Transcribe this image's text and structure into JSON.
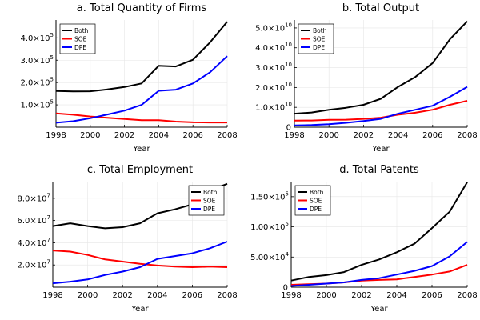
{
  "colors": {
    "Both": "#000000",
    "SOE": "#ff0000",
    "DPE": "#0000ff"
  },
  "chart_data": [
    {
      "type": "line",
      "title": "a. Total Quantity of Firms",
      "xlabel": "Year",
      "ylabel": "",
      "x": [
        1998,
        1999,
        2000,
        2001,
        2002,
        2003,
        2004,
        2005,
        2006,
        2007,
        2008
      ],
      "xticks": [
        "1998",
        "2000",
        "2002",
        "2004",
        "2006",
        "2008"
      ],
      "yticks": [
        {
          "value": 100000,
          "mant": "1.0×10",
          "exp": "5"
        },
        {
          "value": 200000,
          "mant": "2.0×10",
          "exp": "5"
        },
        {
          "value": 300000,
          "mant": "3.0×10",
          "exp": "5"
        },
        {
          "value": 400000,
          "mant": "4.0×10",
          "exp": "5"
        }
      ],
      "ylim": [
        0,
        480000
      ],
      "grid": true,
      "legend_position": "top-left",
      "series": [
        {
          "name": "Both",
          "values": [
            162000,
            160000,
            161000,
            169000,
            180000,
            196000,
            275000,
            272000,
            302000,
            380000,
            472000
          ]
        },
        {
          "name": "SOE",
          "values": [
            62000,
            56000,
            48000,
            42000,
            37000,
            31000,
            31000,
            25000,
            22000,
            21000,
            21000
          ]
        },
        {
          "name": "DPE",
          "values": [
            20000,
            27000,
            40000,
            57000,
            74000,
            100000,
            163000,
            168000,
            196000,
            246000,
            318000
          ]
        }
      ]
    },
    {
      "type": "line",
      "title": "b. Total Output",
      "xlabel": "Year",
      "ylabel": "",
      "x": [
        1998,
        1999,
        2000,
        2001,
        2002,
        2003,
        2004,
        2005,
        2006,
        2007,
        2008
      ],
      "xticks": [
        "1998",
        "2000",
        "2002",
        "2004",
        "2006",
        "2008"
      ],
      "yticks": [
        {
          "value": 0,
          "mant": "0",
          "exp": ""
        },
        {
          "value": 10000000000,
          "mant": "1.0×10",
          "exp": "10"
        },
        {
          "value": 20000000000,
          "mant": "2.0×10",
          "exp": "10"
        },
        {
          "value": 30000000000,
          "mant": "3.0×10",
          "exp": "10"
        },
        {
          "value": 40000000000,
          "mant": "4.0×10",
          "exp": "10"
        },
        {
          "value": 50000000000,
          "mant": "5.0×10",
          "exp": "10"
        }
      ],
      "ylim": [
        0,
        54000000000
      ],
      "grid": true,
      "legend_position": "top-left",
      "series": [
        {
          "name": "Both",
          "values": [
            6800000000,
            7400000000,
            8800000000,
            9800000000,
            11300000000,
            14300000000,
            20300000000,
            25300000000,
            32300000000,
            44300000000,
            53300000000
          ]
        },
        {
          "name": "SOE",
          "values": [
            3300000000,
            3400000000,
            3700000000,
            3800000000,
            4200000000,
            4800000000,
            6300000000,
            7300000000,
            8800000000,
            11300000000,
            13300000000
          ]
        },
        {
          "name": "DPE",
          "values": [
            900000000,
            1100000000,
            1500000000,
            2200000000,
            3100000000,
            4200000000,
            6800000000,
            8800000000,
            10800000000,
            15300000000,
            20300000000
          ]
        }
      ]
    },
    {
      "type": "line",
      "title": "c. Total Employment",
      "xlabel": "Year",
      "ylabel": "",
      "x": [
        1998,
        1999,
        2000,
        2001,
        2002,
        2003,
        2004,
        2005,
        2006,
        2007,
        2008
      ],
      "xticks": [
        "1998",
        "2000",
        "2002",
        "2004",
        "2006",
        "2008"
      ],
      "yticks": [
        {
          "value": 20000000,
          "mant": "2.0×10",
          "exp": "7"
        },
        {
          "value": 40000000,
          "mant": "4.0×10",
          "exp": "7"
        },
        {
          "value": 60000000,
          "mant": "6.0×10",
          "exp": "7"
        },
        {
          "value": 80000000,
          "mant": "8.0×10",
          "exp": "7"
        }
      ],
      "ylim": [
        0,
        95000000
      ],
      "grid": true,
      "legend_position": "top-right",
      "series": [
        {
          "name": "Both",
          "values": [
            55000000,
            57500000,
            55000000,
            53000000,
            54000000,
            57500000,
            66500000,
            70000000,
            74500000,
            87000000,
            93000000
          ]
        },
        {
          "name": "SOE",
          "values": [
            33000000,
            32000000,
            29000000,
            25000000,
            23000000,
            21000000,
            19500000,
            18500000,
            18000000,
            18500000,
            18000000
          ]
        },
        {
          "name": "DPE",
          "values": [
            3500000,
            5000000,
            7000000,
            11000000,
            14000000,
            18000000,
            25500000,
            28000000,
            30500000,
            35000000,
            41000000
          ]
        }
      ]
    },
    {
      "type": "line",
      "title": "d. Total Patents",
      "xlabel": "Year",
      "ylabel": "",
      "x": [
        1998,
        1999,
        2000,
        2001,
        2002,
        2003,
        2004,
        2005,
        2006,
        2007,
        2008
      ],
      "xticks": [
        "1998",
        "2000",
        "2002",
        "2004",
        "2006",
        "2008"
      ],
      "yticks": [
        {
          "value": 0,
          "mant": "0",
          "exp": ""
        },
        {
          "value": 50000,
          "mant": "5.00×10",
          "exp": "4"
        },
        {
          "value": 100000,
          "mant": "1.00×10",
          "exp": "5"
        },
        {
          "value": 150000,
          "mant": "1.50×10",
          "exp": "5"
        }
      ],
      "ylim": [
        0,
        175000
      ],
      "grid": true,
      "legend_position": "top-left",
      "series": [
        {
          "name": "Both",
          "values": [
            11000,
            17000,
            20000,
            25000,
            37000,
            46000,
            58000,
            72000,
            98000,
            125000,
            174000
          ]
        },
        {
          "name": "SOE",
          "values": [
            4000,
            5000,
            6000,
            8000,
            11000,
            12000,
            13000,
            17000,
            21000,
            26000,
            37000
          ]
        },
        {
          "name": "DPE",
          "values": [
            2000,
            4000,
            6000,
            8000,
            12000,
            15000,
            21000,
            27000,
            35000,
            51000,
            75000
          ]
        }
      ]
    }
  ]
}
